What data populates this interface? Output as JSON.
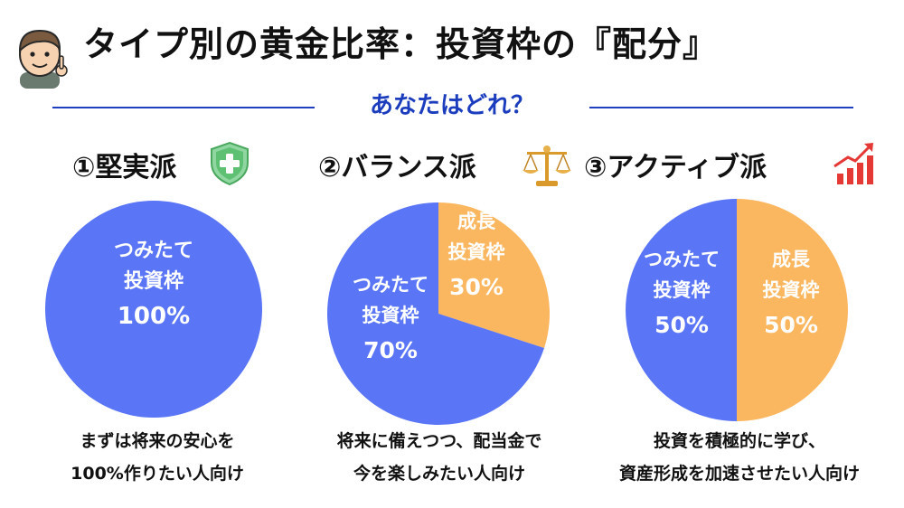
{
  "header": {
    "title": "タイプ別の黄金比率：投資枠の『配分』",
    "subtitle": "あなたはどれ？"
  },
  "colors": {
    "tsumitate": "#5a75f5",
    "growth": "#fbb760",
    "accent_blue": "#1b3dbd",
    "label_white": "#ffffff"
  },
  "columns": [
    {
      "heading": "①堅実派",
      "icon": "shield-plus-icon",
      "desc_lines": [
        "まずは将来の安心を",
        "100%作りたい人向け"
      ]
    },
    {
      "heading": "②バランス派",
      "icon": "balance-scale-icon",
      "desc_lines": [
        "将来に備えつつ、配当金で",
        "今を楽しみたい人向け"
      ]
    },
    {
      "heading": "③アクティブ派",
      "icon": "growth-chart-icon",
      "desc_lines": [
        "投資を積極的に学び、",
        "資産形成を加速させたい人向け"
      ]
    }
  ],
  "chart_data": [
    {
      "type": "pie",
      "slices": [
        {
          "label_lines": [
            "つみたて",
            "投資枠"
          ],
          "value": 100,
          "value_label": "100%",
          "color": "#5a75f5"
        }
      ]
    },
    {
      "type": "pie",
      "slices": [
        {
          "label_lines": [
            "成長",
            "投資枠"
          ],
          "value": 30,
          "value_label": "30%",
          "color": "#fbb760"
        },
        {
          "label_lines": [
            "つみたて",
            "投資枠"
          ],
          "value": 70,
          "value_label": "70%",
          "color": "#5a75f5"
        }
      ]
    },
    {
      "type": "pie",
      "slices": [
        {
          "label_lines": [
            "成長",
            "投資枠"
          ],
          "value": 50,
          "value_label": "50%",
          "color": "#fbb760"
        },
        {
          "label_lines": [
            "つみたて",
            "投資枠"
          ],
          "value": 50,
          "value_label": "50%",
          "color": "#5a75f5"
        }
      ]
    }
  ]
}
